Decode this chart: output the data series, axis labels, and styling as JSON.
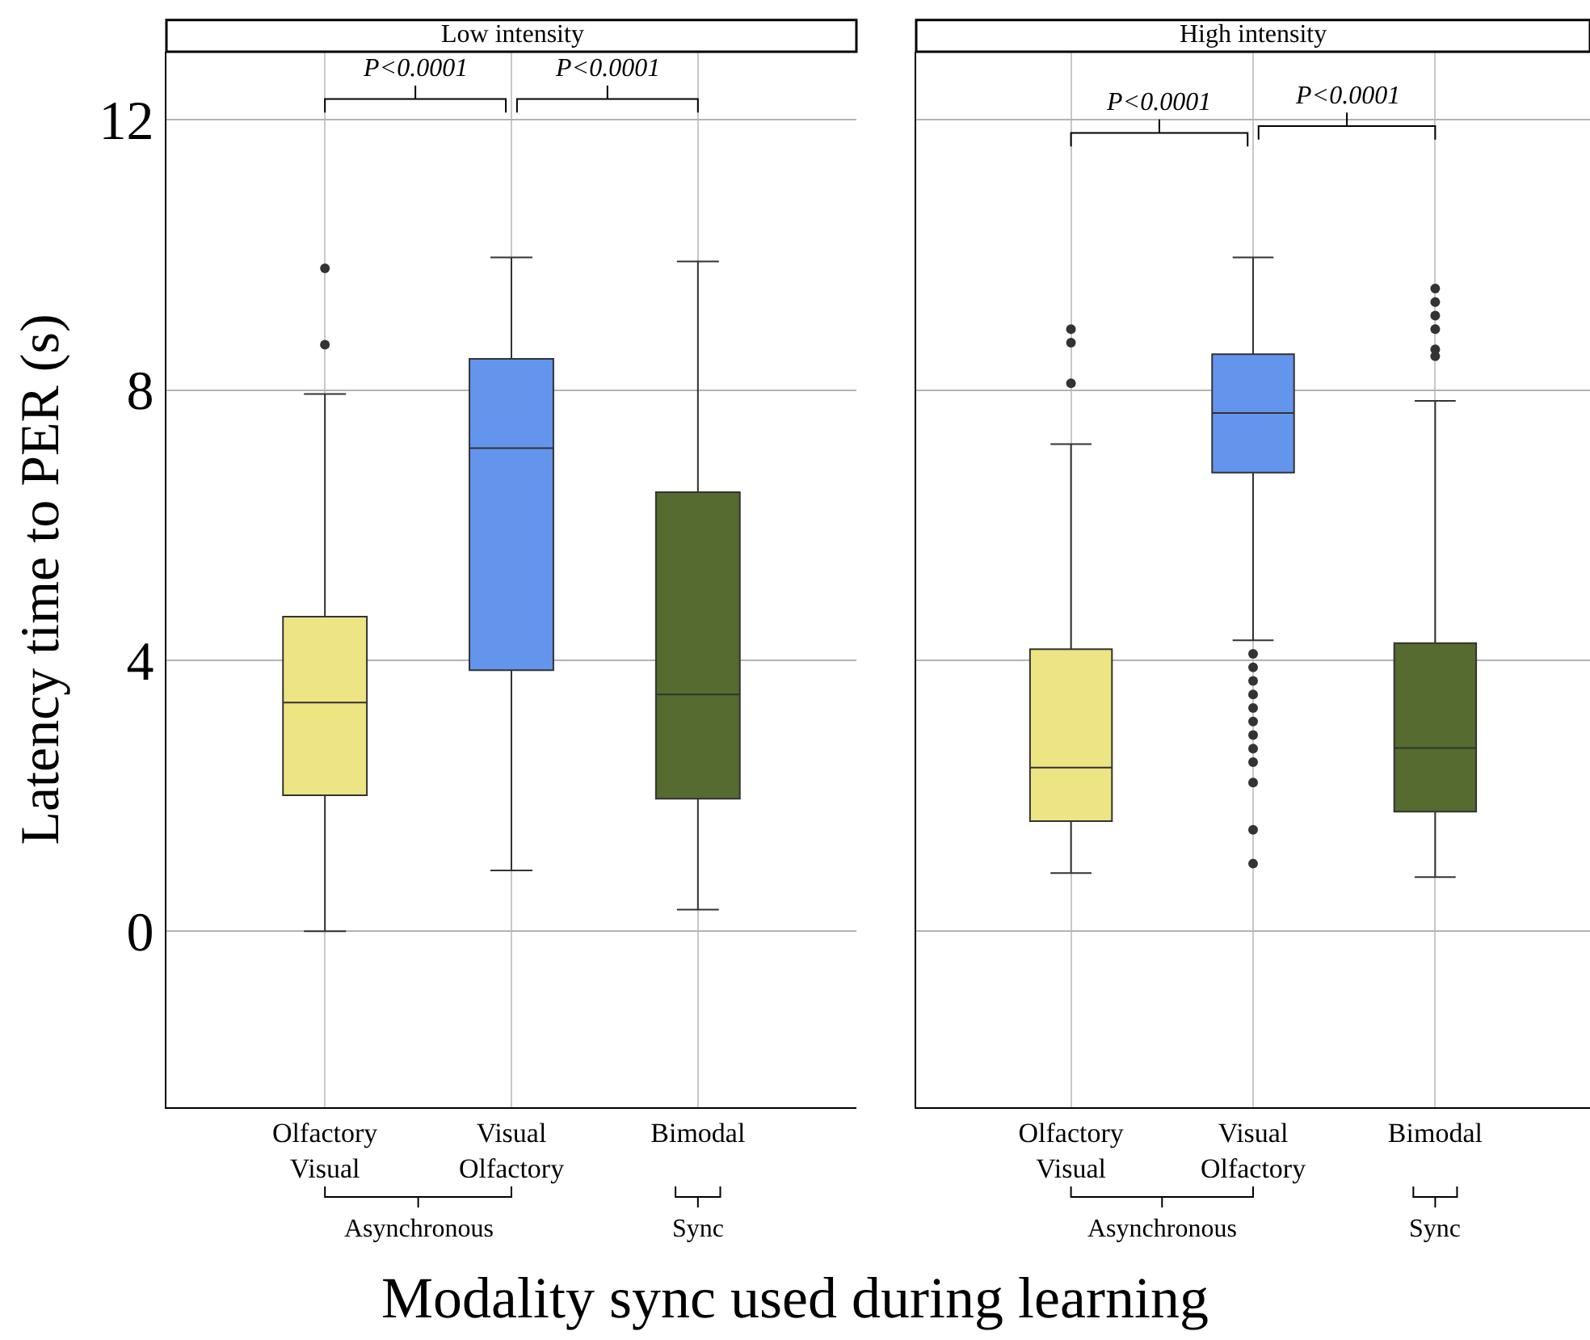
{
  "chart_data": [
    {
      "type": "box",
      "title": "Low intensity",
      "ylabel": "Latency time to PER (s)",
      "xlabel": "Modality sync used during learning",
      "categories": [
        "Olfactory\nVisual",
        "Visual\nOlfactory",
        "Bimodal"
      ],
      "colors": [
        "#ede483",
        "#6495ed",
        "#556b2f"
      ],
      "boxes": [
        {
          "low": 0.0,
          "q1": 2.01,
          "median": 3.38,
          "q3": 4.65,
          "high": 7.94,
          "outliers": [
            8.67,
            9.8
          ]
        },
        {
          "low": 0.9,
          "q1": 3.86,
          "median": 7.14,
          "q3": 8.46,
          "high": 9.96
        },
        {
          "low": 0.32,
          "q1": 1.96,
          "median": 3.5,
          "q3": 6.49,
          "high": 9.9
        }
      ],
      "ylim": [
        -2.6,
        13
      ],
      "yticks": [
        0,
        4,
        8,
        12
      ],
      "grid": true,
      "annotations": [
        "P<0.0001",
        "P<0.0001",
        "Asynchronous",
        "Sync"
      ]
    },
    {
      "type": "box",
      "title": "High intensity",
      "categories": [
        "Olfactory\nVisual",
        "Visual\nOlfactory",
        "Bimodal"
      ],
      "colors": [
        "#ede483",
        "#6495ed",
        "#556b2f"
      ],
      "boxes": [
        {
          "low": 0.86,
          "q1": 1.63,
          "median": 2.42,
          "q3": 4.17,
          "high": 7.2,
          "outliers": [
            8.1,
            8.7,
            8.9
          ]
        },
        {
          "low": 4.3,
          "q1": 6.78,
          "median": 7.66,
          "q3": 8.53,
          "high": 9.96,
          "outliers": [
            1.0,
            1.5,
            2.2,
            2.5,
            2.7,
            2.9,
            3.1,
            3.3,
            3.5,
            3.7,
            3.9,
            4.1
          ]
        },
        {
          "low": 0.8,
          "q1": 1.77,
          "median": 2.71,
          "q3": 4.26,
          "high": 7.84,
          "outliers": [
            8.5,
            8.6,
            8.9,
            9.1,
            9.3,
            9.5
          ]
        }
      ],
      "ylim": [
        -2.6,
        13
      ],
      "yticks": [
        0,
        4,
        8,
        12
      ],
      "grid": true,
      "tick_labels": "x",
      "annotations": [
        "P<0.0001",
        "P<0.0001",
        "Asynchronous",
        "Sync"
      ]
    }
  ]
}
